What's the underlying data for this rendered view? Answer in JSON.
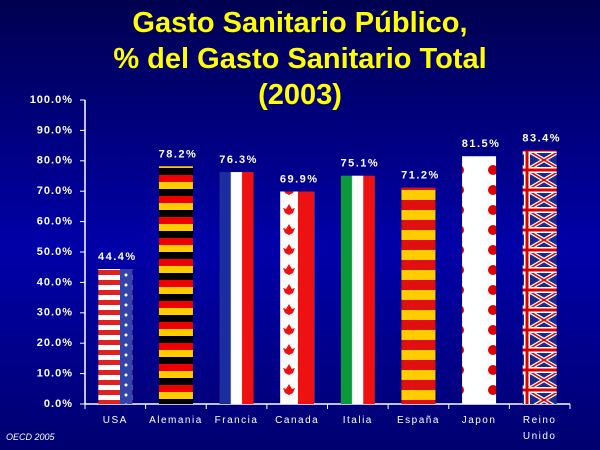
{
  "chart_data": {
    "type": "bar",
    "title_lines": [
      "Gasto Sanitario Público,",
      "% del Gasto Sanitario Total",
      "(2003)"
    ],
    "categories": [
      "USA",
      "Alemania",
      "Francia",
      "Canada",
      "Italia",
      "España",
      "Japon",
      "Reino Unido"
    ],
    "values": [
      44.4,
      78.2,
      76.3,
      69.9,
      75.1,
      71.2,
      81.5,
      83.4
    ],
    "value_labels": [
      "44.4%",
      "78.2%",
      "76.3%",
      "69.9%",
      "75.1%",
      "71.2%",
      "81.5%",
      "83.4%"
    ],
    "ylim": [
      0,
      100
    ],
    "yticks": [
      {
        "value": 0,
        "label": "0.0%"
      },
      {
        "value": 10,
        "label": "10.0%"
      },
      {
        "value": 20,
        "label": "20.0%"
      },
      {
        "value": 30,
        "label": "30.0%"
      },
      {
        "value": 40,
        "label": "40.0%"
      },
      {
        "value": 50,
        "label": "50.0%"
      },
      {
        "value": 60,
        "label": "60.0%"
      },
      {
        "value": 70,
        "label": "70.0%"
      },
      {
        "value": 80,
        "label": "80.0%"
      },
      {
        "value": 90,
        "label": "90.0%"
      },
      {
        "value": 100,
        "label": "100.0%"
      }
    ],
    "source": "OECD 2005"
  }
}
